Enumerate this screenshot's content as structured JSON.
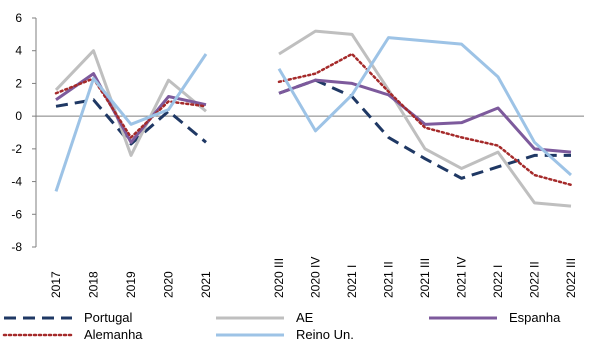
{
  "chart_data": {
    "type": "line",
    "title": "",
    "xlabel": "",
    "ylabel": "",
    "ylim": [
      -8,
      6
    ],
    "yticks": [
      -8,
      -6,
      -4,
      -2,
      0,
      2,
      4,
      6
    ],
    "grid": false,
    "legend_position": "bottom",
    "categories_left": [
      "2017",
      "2018",
      "2019",
      "2020",
      "2021"
    ],
    "categories_right": [
      "2020 III",
      "2020 IV",
      "2021 I",
      "2021 II",
      "2021 III",
      "2021 IV",
      "2022 I",
      "2022 II",
      "2022 III"
    ],
    "series": [
      {
        "name": "Portugal",
        "color": "#1f3864",
        "dash": "dashed",
        "annual": [
          0.6,
          1.0,
          -1.7,
          0.3,
          -1.6
        ],
        "quarterly": [
          1.4,
          2.2,
          1.2,
          -1.3,
          -2.6,
          -3.8,
          -3.1,
          -2.4,
          -2.4
        ]
      },
      {
        "name": "AE",
        "color": "#bfbfbf",
        "dash": "solid",
        "annual": [
          1.6,
          4.0,
          -2.4,
          2.2,
          0.3
        ],
        "quarterly": [
          3.8,
          5.2,
          5.0,
          1.6,
          -2.0,
          -3.2,
          -2.2,
          -5.3,
          -5.5
        ]
      },
      {
        "name": "Espanha",
        "color": "#7d5a9c",
        "dash": "solid",
        "annual": [
          1.0,
          2.6,
          -1.6,
          1.2,
          0.7
        ],
        "quarterly": [
          1.4,
          2.2,
          2.0,
          1.3,
          -0.5,
          -0.4,
          0.5,
          -2.0,
          -2.2
        ]
      },
      {
        "name": "Alemanha",
        "color": "#a52a2a",
        "dash": "dotted",
        "annual": [
          1.4,
          2.3,
          -1.3,
          0.9,
          0.6
        ],
        "quarterly": [
          2.1,
          2.6,
          3.8,
          1.5,
          -0.7,
          -1.3,
          -1.8,
          -3.6,
          -4.2
        ]
      },
      {
        "name": "Reino Un.",
        "color": "#9dc3e6",
        "dash": "solid",
        "annual": [
          -4.6,
          2.3,
          -0.5,
          0.4,
          3.8
        ],
        "quarterly": [
          2.9,
          -0.9,
          1.3,
          4.8,
          4.6,
          4.4,
          2.4,
          -1.6,
          -3.6
        ]
      }
    ]
  }
}
